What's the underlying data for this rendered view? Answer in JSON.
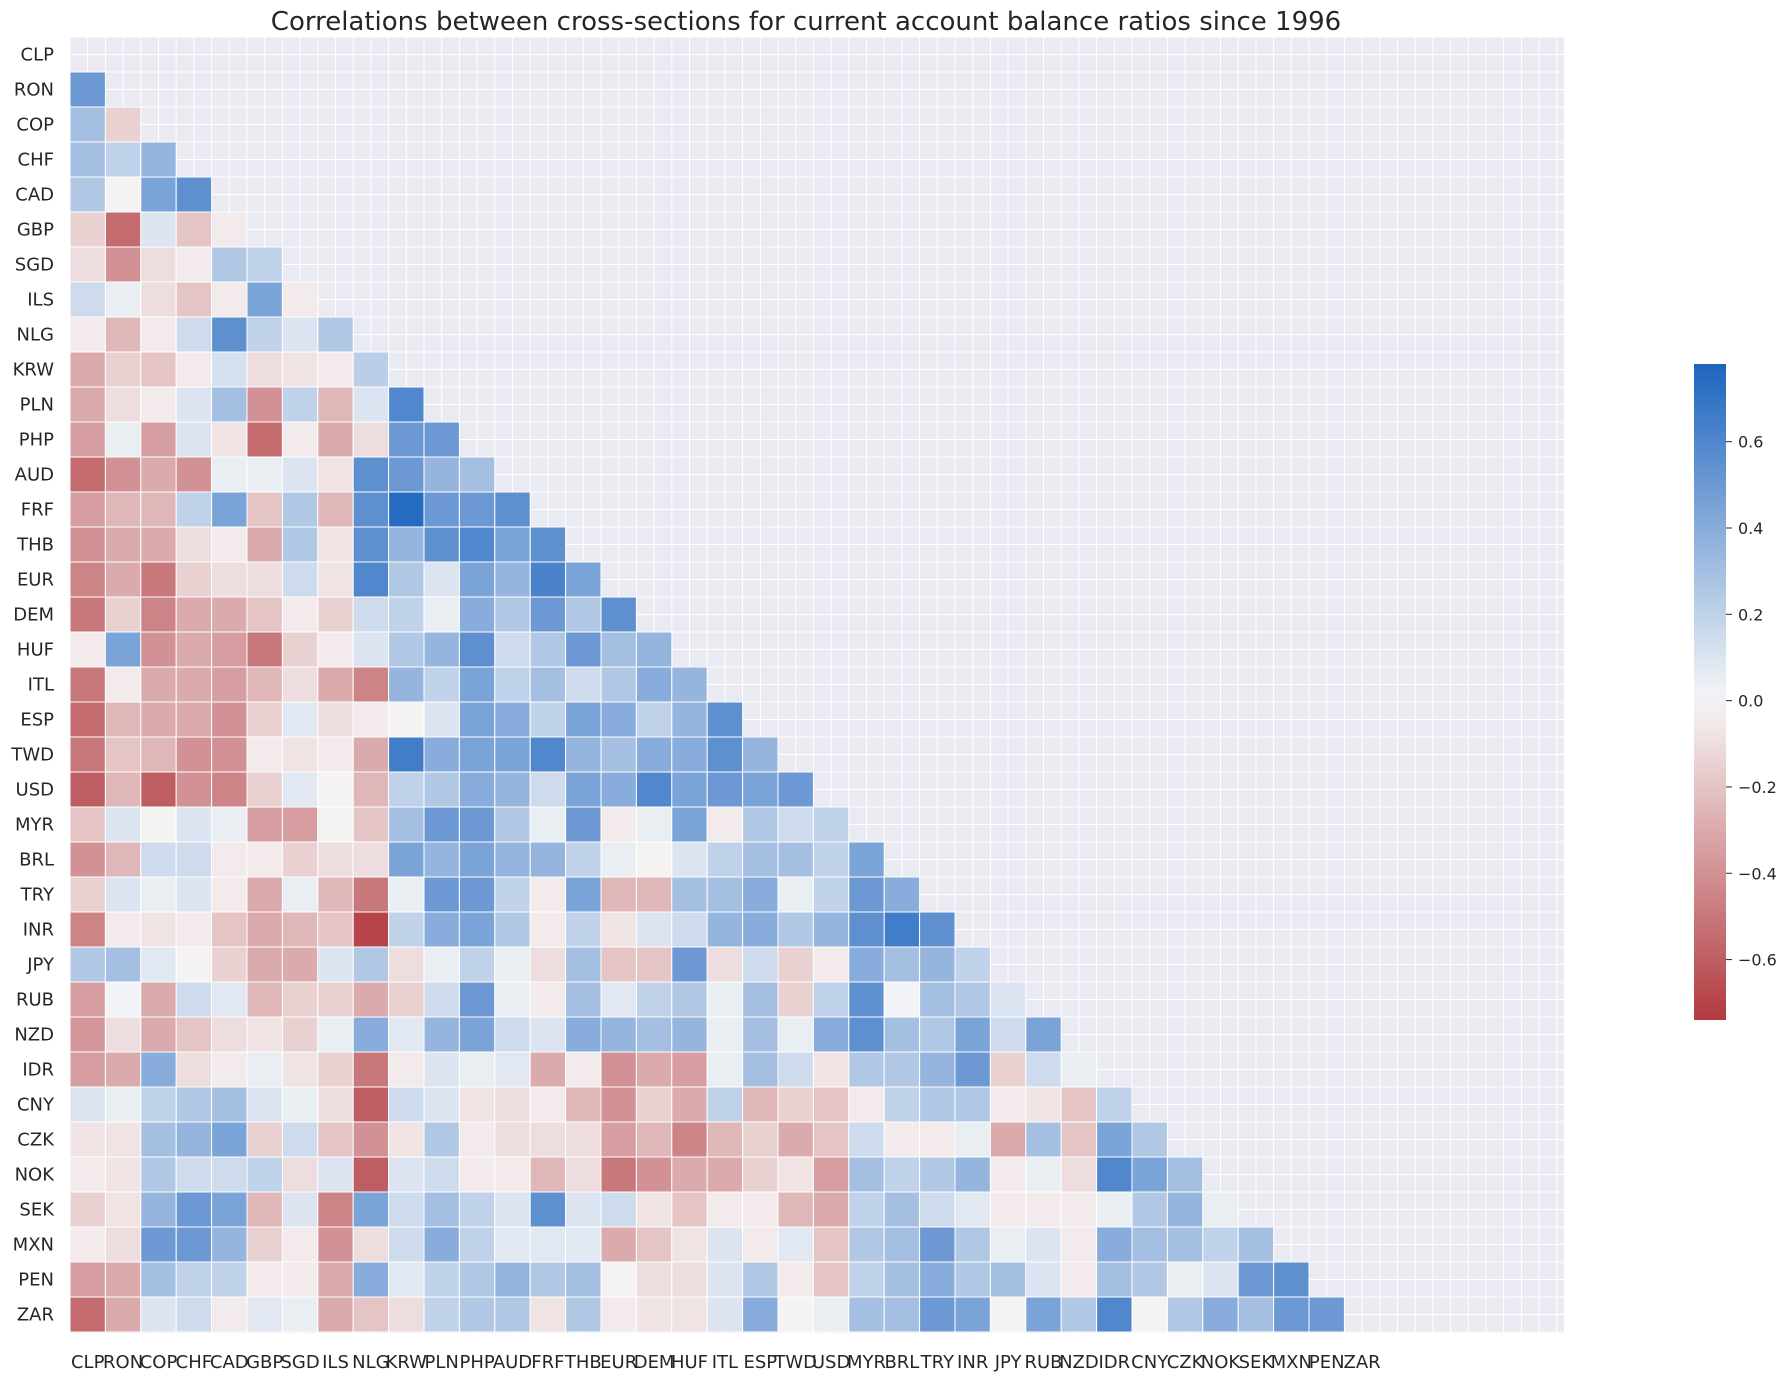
{
  "chart_data": {
    "type": "heatmap",
    "title": "Correlations between cross-sections for current account balance ratios since 1996",
    "xlabel": "",
    "ylabel": "",
    "categories": [
      "CLP",
      "RON",
      "COP",
      "CHF",
      "CAD",
      "GBP",
      "SGD",
      "ILS",
      "NLG",
      "KRW",
      "PLN",
      "PHP",
      "AUD",
      "FRF",
      "THB",
      "EUR",
      "DEM",
      "HUF",
      "ITL",
      "ESP",
      "TWD",
      "USD",
      "MYR",
      "BRL",
      "TRY",
      "INR",
      "JPY",
      "RUB",
      "NZD",
      "IDR",
      "CNY",
      "CZK",
      "NOK",
      "SEK",
      "MXN",
      "PEN",
      "ZAR"
    ],
    "mask": "upper-triangle-and-diagonal",
    "colormap": {
      "low": "#b23a3f",
      "mid": "#f7f7f7",
      "high": "#1e65c0"
    },
    "colorbar": {
      "min": -0.74,
      "max": 0.78,
      "ticks": [
        -0.6,
        -0.4,
        -0.2,
        0.0,
        0.2,
        0.4,
        0.6
      ],
      "tick_labels": [
        "−0.6",
        "−0.4",
        "−0.2",
        "0.0",
        "0.2",
        "0.4",
        "0.6"
      ]
    },
    "grid": true,
    "values": [
      [],
      [
        0.5
      ],
      [
        0.3,
        -0.15
      ],
      [
        0.3,
        0.2,
        0.35
      ],
      [
        0.25,
        -0.02,
        0.45,
        0.55
      ],
      [
        -0.15,
        -0.55,
        0.1,
        -0.2,
        -0.05
      ],
      [
        -0.1,
        -0.4,
        -0.1,
        -0.05,
        0.25,
        0.2
      ],
      [
        0.15,
        0.05,
        -0.1,
        -0.2,
        -0.05,
        0.45,
        -0.05
      ],
      [
        -0.05,
        -0.25,
        -0.05,
        0.15,
        0.55,
        0.2,
        0.1,
        0.25
      ],
      [
        -0.3,
        -0.15,
        -0.2,
        -0.05,
        0.12,
        -0.1,
        -0.08,
        -0.05,
        0.22
      ],
      [
        -0.3,
        -0.1,
        -0.05,
        0.1,
        0.3,
        -0.4,
        0.2,
        -0.25,
        0.1,
        0.6
      ],
      [
        -0.35,
        0.05,
        -0.35,
        0.1,
        -0.08,
        -0.55,
        -0.05,
        -0.3,
        -0.1,
        0.5,
        0.5
      ],
      [
        -0.55,
        -0.4,
        -0.3,
        -0.4,
        0.05,
        0.05,
        0.1,
        -0.08,
        0.55,
        0.5,
        0.35,
        0.3
      ],
      [
        -0.35,
        -0.25,
        -0.25,
        0.2,
        0.45,
        -0.2,
        0.25,
        -0.25,
        0.55,
        0.75,
        0.5,
        0.5,
        0.55
      ],
      [
        -0.4,
        -0.3,
        -0.3,
        -0.1,
        -0.05,
        -0.3,
        0.25,
        -0.08,
        0.55,
        0.35,
        0.55,
        0.6,
        0.45,
        0.55
      ],
      [
        -0.45,
        -0.3,
        -0.5,
        -0.15,
        -0.1,
        -0.1,
        0.15,
        -0.08,
        0.6,
        0.25,
        0.1,
        0.45,
        0.35,
        0.62,
        0.45
      ],
      [
        -0.5,
        -0.15,
        -0.45,
        -0.3,
        -0.3,
        -0.2,
        -0.05,
        -0.15,
        0.15,
        0.2,
        0.05,
        0.4,
        0.25,
        0.5,
        0.25,
        0.55
      ],
      [
        -0.05,
        0.45,
        -0.4,
        -0.3,
        -0.35,
        -0.5,
        -0.15,
        -0.05,
        0.1,
        0.25,
        0.35,
        0.55,
        0.15,
        0.25,
        0.5,
        0.3,
        0.35
      ],
      [
        -0.5,
        -0.05,
        -0.3,
        -0.3,
        -0.35,
        -0.25,
        -0.1,
        -0.3,
        -0.45,
        0.35,
        0.2,
        0.45,
        0.2,
        0.3,
        0.15,
        0.25,
        0.4,
        0.35
      ],
      [
        -0.55,
        -0.25,
        -0.3,
        -0.3,
        -0.4,
        -0.15,
        0.08,
        -0.1,
        -0.05,
        -0.02,
        0.1,
        0.45,
        0.4,
        0.2,
        0.45,
        0.4,
        0.2,
        0.35,
        0.55
      ],
      [
        -0.5,
        -0.2,
        -0.25,
        -0.4,
        -0.4,
        -0.05,
        -0.08,
        -0.05,
        -0.3,
        0.65,
        0.4,
        0.45,
        0.45,
        0.6,
        0.35,
        0.3,
        0.4,
        0.4,
        0.55,
        0.35
      ],
      [
        -0.6,
        -0.25,
        -0.6,
        -0.4,
        -0.45,
        -0.15,
        0.08,
        -0.02,
        -0.25,
        0.2,
        0.25,
        0.4,
        0.35,
        0.15,
        0.45,
        0.4,
        0.6,
        0.45,
        0.5,
        0.45,
        0.5
      ],
      [
        -0.2,
        0.1,
        -0.02,
        0.1,
        0.05,
        -0.35,
        -0.35,
        -0.02,
        -0.2,
        0.3,
        0.5,
        0.5,
        0.25,
        0.05,
        0.5,
        -0.05,
        0.05,
        0.45,
        -0.05,
        0.25,
        0.15,
        0.2
      ],
      [
        -0.4,
        -0.25,
        0.15,
        0.15,
        -0.05,
        -0.05,
        -0.15,
        -0.1,
        -0.1,
        0.45,
        0.35,
        0.45,
        0.35,
        0.35,
        0.2,
        0.05,
        -0.02,
        0.1,
        0.2,
        0.3,
        0.3,
        0.2,
        0.45
      ],
      [
        -0.15,
        0.1,
        0.05,
        0.1,
        -0.05,
        -0.3,
        0.05,
        -0.25,
        -0.5,
        0.05,
        0.5,
        0.5,
        0.2,
        -0.05,
        0.45,
        -0.25,
        -0.25,
        0.3,
        0.3,
        0.4,
        0.05,
        0.2,
        0.5,
        0.4
      ],
      [
        -0.45,
        -0.05,
        -0.08,
        -0.05,
        -0.2,
        -0.3,
        -0.25,
        -0.2,
        -0.7,
        0.2,
        0.4,
        0.45,
        0.25,
        -0.05,
        0.2,
        -0.08,
        0.1,
        0.15,
        0.35,
        0.4,
        0.25,
        0.35,
        0.55,
        0.65,
        0.55
      ],
      [
        0.25,
        0.3,
        0.08,
        -0.02,
        -0.15,
        -0.3,
        -0.3,
        0.1,
        0.25,
        -0.1,
        0.05,
        0.2,
        0.05,
        -0.1,
        0.3,
        -0.2,
        -0.2,
        0.5,
        -0.1,
        0.15,
        -0.15,
        -0.05,
        0.4,
        0.3,
        0.35,
        0.2
      ],
      [
        -0.35,
        0.02,
        -0.3,
        0.15,
        0.08,
        -0.25,
        -0.15,
        -0.15,
        -0.3,
        -0.15,
        0.15,
        0.5,
        0.05,
        -0.05,
        0.3,
        0.08,
        0.2,
        0.25,
        0.05,
        0.3,
        -0.15,
        0.2,
        0.55,
        0.02,
        0.3,
        0.25,
        0.1
      ],
      [
        -0.38,
        -0.1,
        -0.3,
        -0.2,
        -0.1,
        -0.08,
        -0.15,
        0.05,
        0.4,
        0.08,
        0.35,
        0.45,
        0.15,
        0.1,
        0.4,
        0.35,
        0.3,
        0.35,
        0.05,
        0.3,
        0.05,
        0.4,
        0.55,
        0.3,
        0.25,
        0.45,
        0.15,
        0.45
      ],
      [
        -0.35,
        -0.3,
        0.4,
        -0.1,
        -0.05,
        0.05,
        -0.08,
        -0.15,
        -0.5,
        -0.05,
        0.1,
        0.05,
        0.08,
        -0.3,
        -0.05,
        -0.4,
        -0.3,
        -0.35,
        0.05,
        0.3,
        0.15,
        -0.08,
        0.25,
        0.25,
        0.35,
        0.5,
        -0.15,
        0.15,
        0.05
      ],
      [
        0.1,
        0.05,
        0.2,
        0.25,
        0.3,
        0.1,
        0.05,
        -0.1,
        -0.6,
        0.15,
        0.1,
        -0.08,
        -0.1,
        -0.05,
        -0.25,
        -0.4,
        -0.15,
        -0.3,
        0.2,
        -0.25,
        -0.15,
        -0.2,
        -0.05,
        0.2,
        0.25,
        0.25,
        -0.05,
        -0.08,
        -0.2,
        0.2
      ],
      [
        -0.08,
        -0.08,
        0.3,
        0.35,
        0.45,
        -0.15,
        0.15,
        -0.2,
        -0.4,
        -0.08,
        0.25,
        -0.05,
        -0.1,
        -0.1,
        -0.1,
        -0.35,
        -0.25,
        -0.45,
        -0.25,
        -0.15,
        -0.3,
        -0.2,
        0.15,
        -0.05,
        -0.05,
        0.05,
        -0.3,
        0.3,
        -0.2,
        0.45,
        0.25
      ],
      [
        -0.05,
        -0.08,
        0.25,
        0.15,
        0.15,
        0.2,
        -0.1,
        0.1,
        -0.6,
        0.1,
        0.15,
        -0.05,
        -0.05,
        -0.25,
        -0.1,
        -0.5,
        -0.4,
        -0.3,
        -0.3,
        -0.15,
        -0.08,
        -0.35,
        0.3,
        0.2,
        0.25,
        0.35,
        -0.05,
        0.05,
        -0.1,
        0.6,
        0.45,
        0.3
      ],
      [
        -0.15,
        -0.08,
        0.35,
        0.5,
        0.45,
        -0.25,
        0.1,
        -0.45,
        0.45,
        0.15,
        0.3,
        0.2,
        0.1,
        0.55,
        0.1,
        0.15,
        -0.08,
        -0.2,
        -0.05,
        -0.05,
        -0.25,
        -0.3,
        0.2,
        0.3,
        0.15,
        0.08,
        -0.05,
        -0.05,
        -0.05,
        0.05,
        0.25,
        0.35,
        0.05
      ],
      [
        -0.05,
        -0.1,
        0.5,
        0.5,
        0.35,
        -0.15,
        -0.05,
        -0.4,
        -0.1,
        0.15,
        0.4,
        0.2,
        0.08,
        0.08,
        0.08,
        -0.3,
        -0.2,
        -0.08,
        0.1,
        -0.05,
        0.08,
        -0.2,
        0.25,
        0.3,
        0.5,
        0.25,
        0.05,
        0.1,
        -0.05,
        0.4,
        0.3,
        0.3,
        0.2,
        0.3
      ],
      [
        -0.35,
        -0.3,
        0.3,
        0.2,
        0.2,
        -0.05,
        -0.05,
        -0.3,
        0.4,
        0.08,
        0.2,
        0.25,
        0.35,
        0.25,
        0.3,
        -0.02,
        -0.1,
        -0.1,
        0.1,
        0.25,
        -0.05,
        -0.2,
        0.2,
        0.3,
        0.4,
        0.25,
        0.3,
        0.1,
        -0.05,
        0.3,
        0.25,
        0.05,
        0.1,
        0.5,
        0.55
      ],
      [
        -0.55,
        -0.3,
        0.1,
        0.15,
        -0.05,
        0.08,
        0.05,
        -0.3,
        -0.2,
        -0.1,
        0.2,
        0.25,
        0.25,
        -0.08,
        0.25,
        -0.05,
        -0.08,
        -0.08,
        0.1,
        0.4,
        -0.02,
        0.05,
        0.3,
        0.3,
        0.5,
        0.45,
        -0.02,
        0.45,
        0.25,
        0.6,
        -0.02,
        0.25,
        0.4,
        0.3,
        0.5,
        0.5
      ]
    ]
  }
}
